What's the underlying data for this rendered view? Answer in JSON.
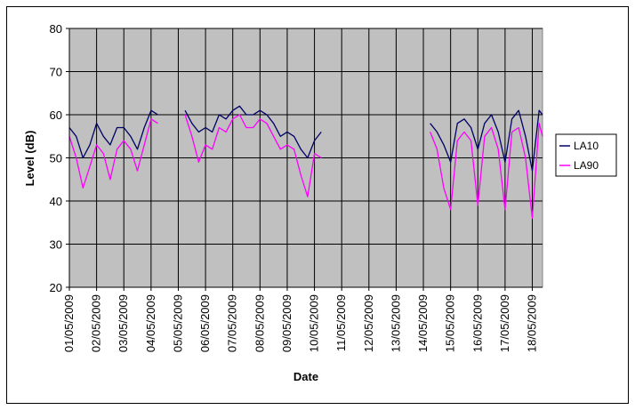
{
  "chart_data": {
    "type": "line",
    "title": "",
    "xlabel": "Date",
    "ylabel": "Level (dB)",
    "ylim": [
      20,
      80
    ],
    "yticks": [
      "20",
      "30",
      "40",
      "50",
      "60",
      "70",
      "80"
    ],
    "xticks": [
      "01/05/2009",
      "02/05/2009",
      "03/05/2009",
      "04/05/2009",
      "05/05/2009",
      "06/05/2009",
      "07/05/2009",
      "08/05/2009",
      "09/05/2009",
      "10/05/2009",
      "11/05/2009",
      "12/05/2009",
      "13/05/2009",
      "14/05/2009",
      "15/05/2009",
      "16/05/2009",
      "17/05/2009",
      "18/05/2009"
    ],
    "xlim": [
      "01/05/2009 00:00",
      "18/05/2009 09:00"
    ],
    "grid": true,
    "legend": "right",
    "plot_background": "#c0c0c0",
    "series": [
      {
        "name": "LA10",
        "color": "#000066",
        "x": [
          "01/05/2009 00:00",
          "01/05/2009 06:00",
          "01/05/2009 12:00",
          "01/05/2009 18:00",
          "02/05/2009 00:00",
          "02/05/2009 06:00",
          "02/05/2009 12:00",
          "02/05/2009 18:00",
          "03/05/2009 00:00",
          "03/05/2009 06:00",
          "03/05/2009 12:00",
          "03/05/2009 18:00",
          "04/05/2009 00:00",
          "04/05/2009 06:00",
          "05/05/2009 06:00",
          "05/05/2009 12:00",
          "05/05/2009 18:00",
          "06/05/2009 00:00",
          "06/05/2009 06:00",
          "06/05/2009 12:00",
          "06/05/2009 18:00",
          "07/05/2009 00:00",
          "07/05/2009 06:00",
          "07/05/2009 12:00",
          "07/05/2009 18:00",
          "08/05/2009 00:00",
          "08/05/2009 06:00",
          "08/05/2009 12:00",
          "08/05/2009 18:00",
          "09/05/2009 00:00",
          "09/05/2009 06:00",
          "09/05/2009 12:00",
          "09/05/2009 18:00",
          "10/05/2009 00:00",
          "10/05/2009 06:00",
          "14/05/2009 06:00",
          "14/05/2009 12:00",
          "14/05/2009 18:00",
          "15/05/2009 00:00",
          "15/05/2009 06:00",
          "15/05/2009 12:00",
          "15/05/2009 18:00",
          "16/05/2009 00:00",
          "16/05/2009 06:00",
          "16/05/2009 12:00",
          "16/05/2009 18:00",
          "17/05/2009 00:00",
          "17/05/2009 06:00",
          "17/05/2009 12:00",
          "17/05/2009 18:00",
          "18/05/2009 00:00",
          "18/05/2009 06:00",
          "18/05/2009 09:00"
        ],
        "values": [
          57,
          55,
          50,
          53,
          58,
          55,
          53,
          57,
          57,
          55,
          52,
          57,
          61,
          60,
          61,
          58,
          56,
          57,
          56,
          60,
          59,
          61,
          62,
          60,
          60,
          61,
          60,
          58,
          55,
          56,
          55,
          52,
          50,
          54,
          56,
          58,
          56,
          53,
          49,
          58,
          59,
          57,
          52,
          58,
          60,
          56,
          49,
          59,
          61,
          55,
          47,
          61,
          60
        ]
      },
      {
        "name": "LA90",
        "color": "#ff00ff",
        "x": [
          "01/05/2009 00:00",
          "01/05/2009 06:00",
          "01/05/2009 12:00",
          "01/05/2009 18:00",
          "02/05/2009 00:00",
          "02/05/2009 06:00",
          "02/05/2009 12:00",
          "02/05/2009 18:00",
          "03/05/2009 00:00",
          "03/05/2009 06:00",
          "03/05/2009 12:00",
          "03/05/2009 18:00",
          "04/05/2009 00:00",
          "04/05/2009 06:00",
          "05/05/2009 06:00",
          "05/05/2009 12:00",
          "05/05/2009 18:00",
          "06/05/2009 00:00",
          "06/05/2009 06:00",
          "06/05/2009 12:00",
          "06/05/2009 18:00",
          "07/05/2009 00:00",
          "07/05/2009 06:00",
          "07/05/2009 12:00",
          "07/05/2009 18:00",
          "08/05/2009 00:00",
          "08/05/2009 06:00",
          "08/05/2009 12:00",
          "08/05/2009 18:00",
          "09/05/2009 00:00",
          "09/05/2009 06:00",
          "09/05/2009 12:00",
          "09/05/2009 18:00",
          "10/05/2009 00:00",
          "10/05/2009 06:00",
          "14/05/2009 06:00",
          "14/05/2009 12:00",
          "14/05/2009 18:00",
          "15/05/2009 00:00",
          "15/05/2009 06:00",
          "15/05/2009 12:00",
          "15/05/2009 18:00",
          "16/05/2009 00:00",
          "16/05/2009 06:00",
          "16/05/2009 12:00",
          "16/05/2009 18:00",
          "17/05/2009 00:00",
          "17/05/2009 06:00",
          "17/05/2009 12:00",
          "17/05/2009 18:00",
          "18/05/2009 00:00",
          "18/05/2009 06:00",
          "18/05/2009 09:00"
        ],
        "values": [
          55,
          50,
          43,
          48,
          53,
          51,
          45,
          52,
          54,
          52,
          47,
          53,
          59,
          58,
          60,
          55,
          49,
          53,
          52,
          57,
          56,
          59,
          60,
          57,
          57,
          59,
          58,
          55,
          52,
          53,
          52,
          46,
          41,
          51,
          50,
          56,
          52,
          43,
          38,
          54,
          56,
          54,
          39,
          55,
          57,
          52,
          38,
          56,
          57,
          50,
          36,
          58,
          55
        ]
      }
    ]
  }
}
